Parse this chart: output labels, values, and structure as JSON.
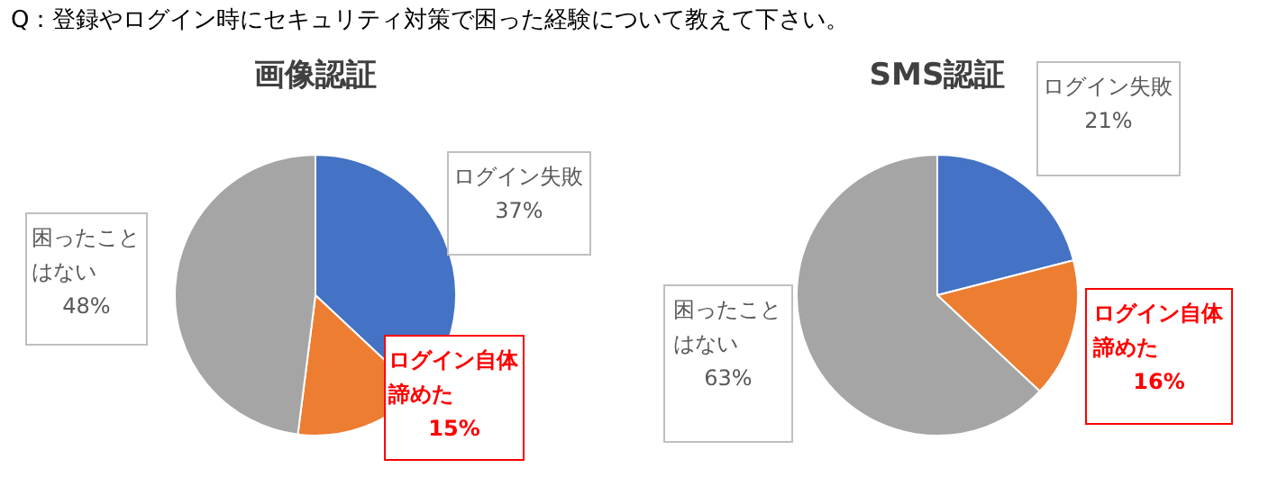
{
  "chart_data": [
    {
      "type": "pie",
      "title": "画像認証",
      "annotations": [
        "Q：登録やログイン時にセキュリティ対策で困った経験について教えて下さい。"
      ],
      "categories": [
        "ログイン失敗",
        "ログイン自体諦めた",
        "困ったことはない"
      ],
      "values": [
        37,
        15,
        48
      ],
      "value_labels": [
        "37%",
        "15%",
        "48%"
      ],
      "colors": [
        "#4472c4",
        "#ed7d31",
        "#a5a5a5"
      ]
    },
    {
      "type": "pie",
      "title": "SMS認証",
      "categories": [
        "ログイン失敗",
        "ログイン自体諦めた",
        "困ったことはない"
      ],
      "values": [
        21,
        16,
        63
      ],
      "value_labels": [
        "21%",
        "16%",
        "63%"
      ],
      "colors": [
        "#4472c4",
        "#ed7d31",
        "#a5a5a5"
      ]
    }
  ]
}
